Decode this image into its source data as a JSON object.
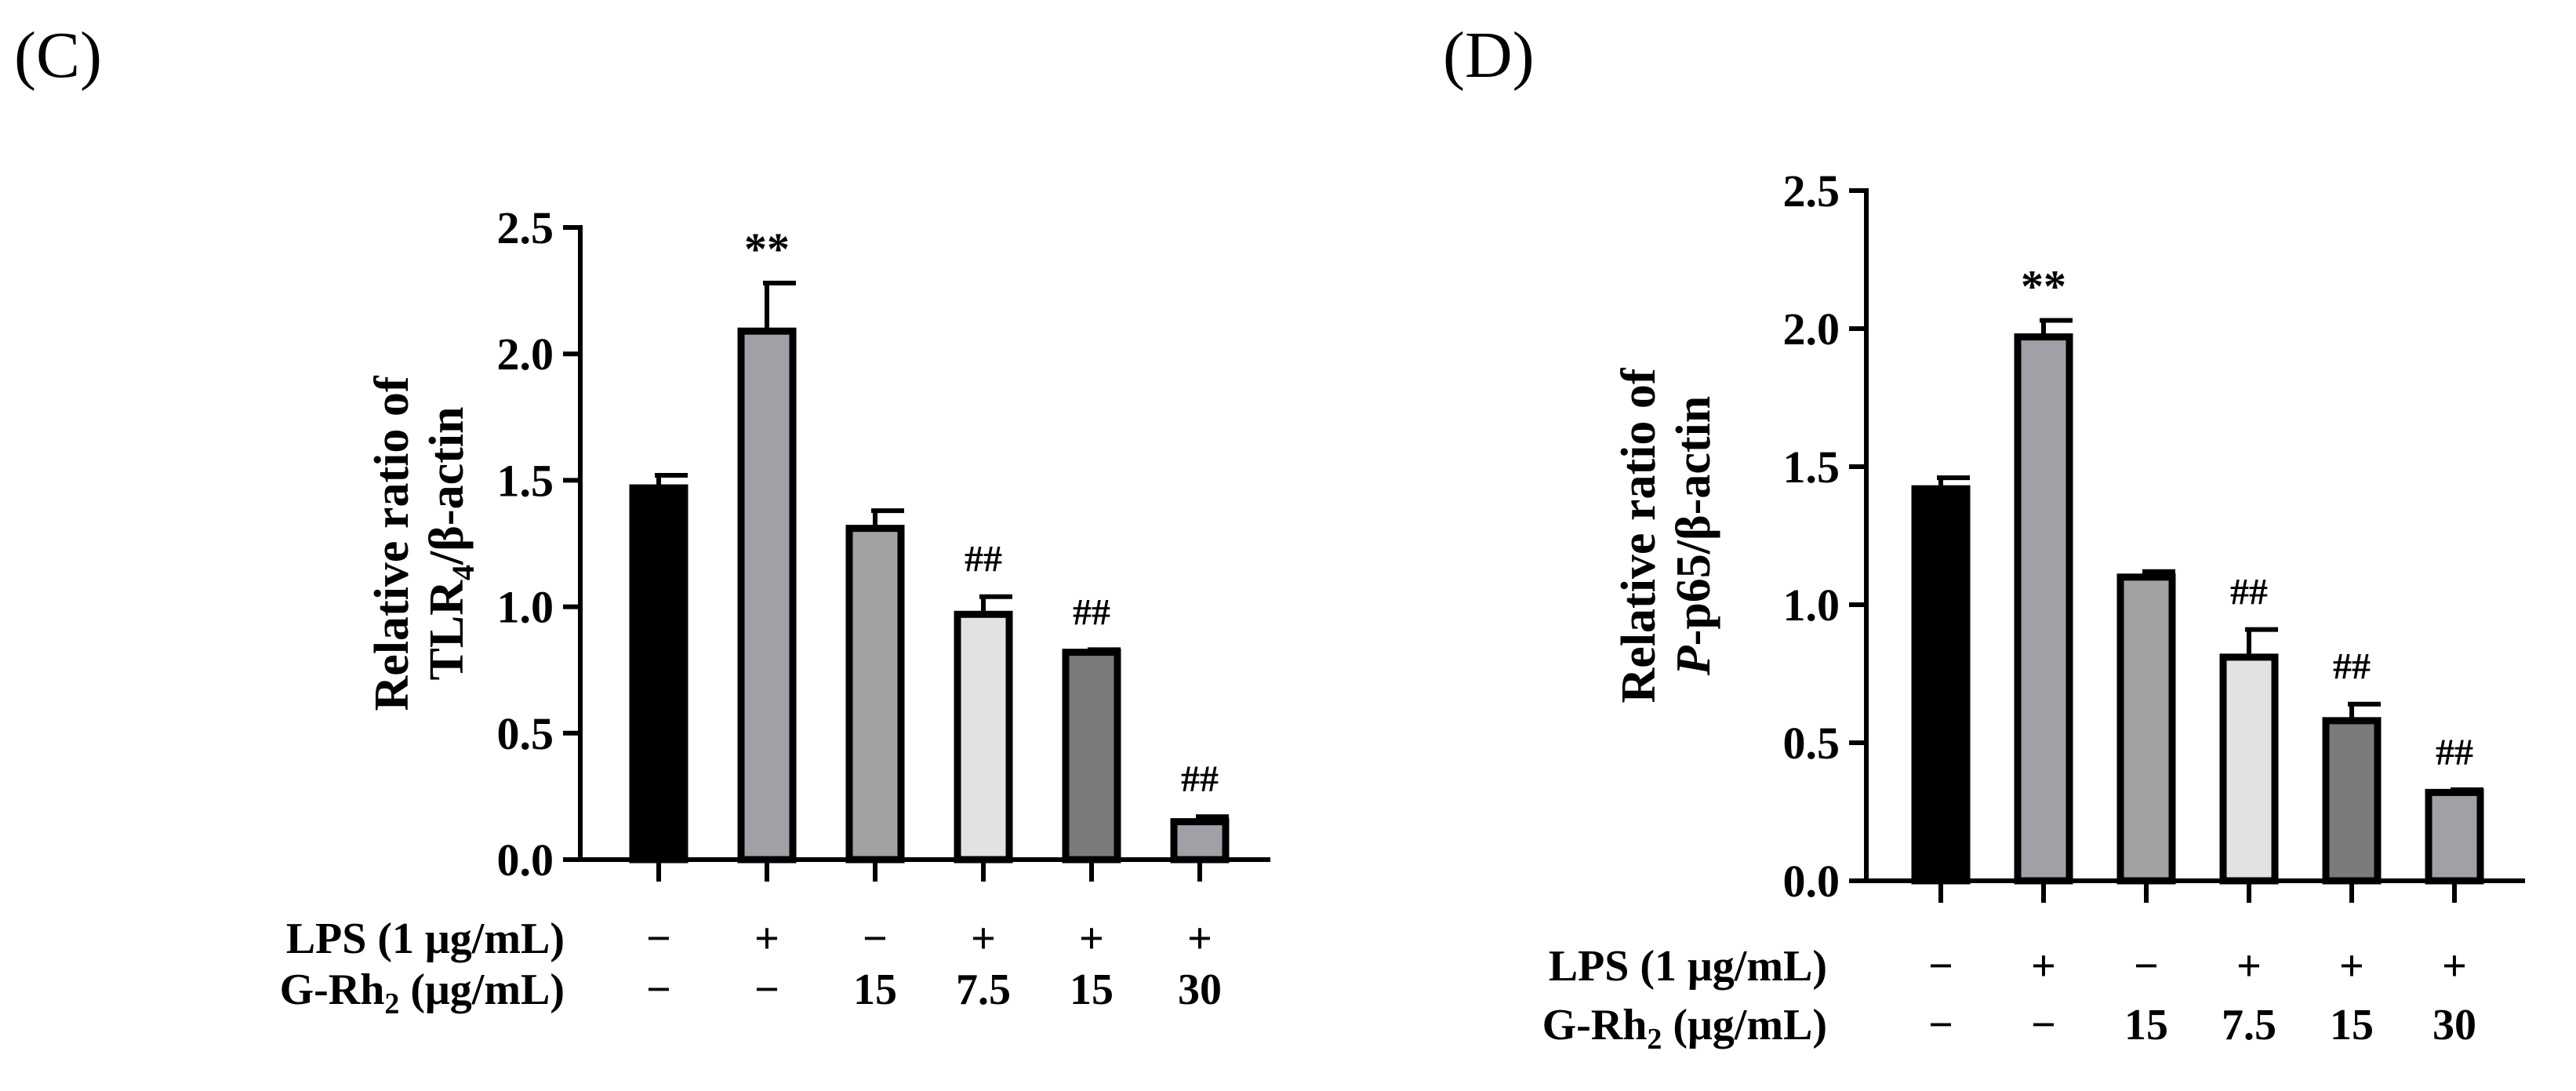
{
  "chart_data": [
    {
      "type": "bar",
      "panel": "(C)",
      "ylabel_line1": "Relative ratio of",
      "ylabel_line2": {
        "main": "TLR",
        "sub": "4",
        "rest": "/β-actin"
      },
      "ylim": [
        0,
        2.5
      ],
      "yticks": [
        "0.0",
        "0.5",
        "1.0",
        "1.5",
        "2.0",
        "2.5"
      ],
      "values": [
        1.47,
        2.09,
        1.31,
        0.97,
        0.82,
        0.15
      ],
      "errors": [
        0.05,
        0.19,
        0.07,
        0.07,
        0.01,
        0.02
      ],
      "colors": [
        "#000000",
        "#a0a1a6",
        "#a2a2a2",
        "#e2e2e2",
        "#7b7b7b",
        "#a0a1a6"
      ],
      "annotations": [
        "",
        "**",
        "",
        "##",
        "##",
        "##"
      ],
      "condition_rows": [
        {
          "label": "LPS (1  μg/mL)",
          "values": [
            "−",
            "+",
            "−",
            "+",
            "+",
            "+"
          ]
        },
        {
          "label_main": "G-Rh",
          "label_sub": "2",
          "label_rest": " (μg/mL)",
          "values": [
            "−",
            "−",
            "15",
            "7.5",
            "15",
            "30"
          ]
        }
      ]
    },
    {
      "type": "bar",
      "panel": "(D)",
      "ylabel_line1": "Relative ratio of",
      "ylabel_line2": {
        "italic": "P",
        "rest": "-p65/β-actin"
      },
      "ylim": [
        0,
        2.5
      ],
      "yticks": [
        "0.0",
        "0.5",
        "1.0",
        "1.5",
        "2.0",
        "2.5"
      ],
      "values": [
        1.42,
        1.97,
        1.1,
        0.81,
        0.58,
        0.32
      ],
      "errors": [
        0.04,
        0.06,
        0.02,
        0.1,
        0.06,
        0.01
      ],
      "colors": [
        "#000000",
        "#a0a1a6",
        "#a2a2a2",
        "#e2e2e2",
        "#7b7b7b",
        "#a0a1a6"
      ],
      "annotations": [
        "",
        "**",
        "",
        "##",
        "##",
        "##"
      ],
      "condition_rows": [
        {
          "label": "LPS (1  μg/mL)",
          "values": [
            "−",
            "+",
            "−",
            "+",
            "+",
            "+"
          ]
        },
        {
          "label_main": "G-Rh",
          "label_sub": "2",
          "label_rest": " (μg/mL)",
          "values": [
            "−",
            "−",
            "15",
            "7.5",
            "15",
            "30"
          ]
        }
      ]
    }
  ]
}
